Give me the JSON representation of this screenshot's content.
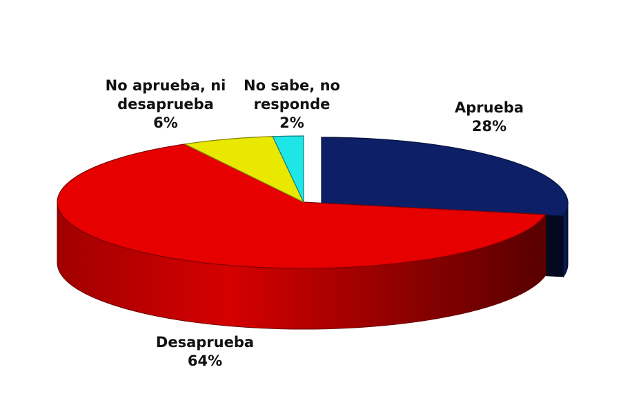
{
  "chart_data": {
    "type": "pie",
    "style": "3d-exploded",
    "title": "",
    "unit": "%",
    "slices": [
      {
        "label": "Aprueba",
        "value": 28,
        "value_label": "28%",
        "color": "#0D1F66",
        "exploded": true
      },
      {
        "label": "Desaprueba",
        "value": 64,
        "value_label": "64%",
        "color": "#E60000",
        "exploded": false
      },
      {
        "label": "No aprueba, ni desaprueba",
        "value": 6,
        "value_label": "6%",
        "color": "#E8E800",
        "exploded": false
      },
      {
        "label": "No sabe, no responde",
        "value": 2,
        "value_label": "2%",
        "color": "#1EE6E6",
        "exploded": false
      }
    ]
  }
}
